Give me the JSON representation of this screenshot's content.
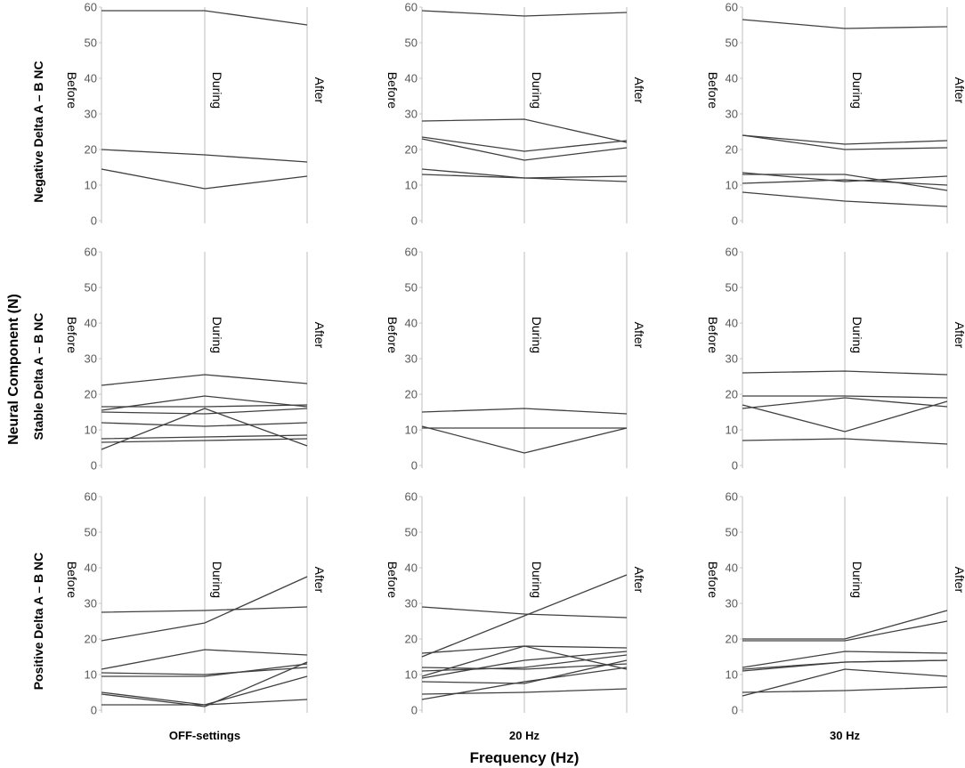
{
  "chart_data": {
    "type": "parallel-coordinates",
    "ylabel": "Neural Component (N)",
    "xlabel": "Frequency (Hz)",
    "ylim": [
      0,
      60
    ],
    "yticks": [
      0,
      10,
      20,
      30,
      40,
      50,
      60
    ],
    "timepoints": [
      "Before",
      "During",
      "After"
    ],
    "columns": [
      "OFF-settings",
      "20 Hz",
      "30 Hz"
    ],
    "rows": [
      "Negative Delta A – B NC",
      "Stable Delta A – B NC",
      "Positive Delta A – B NC"
    ],
    "panels": [
      [
        [
          [
            59,
            59,
            55
          ],
          [
            20,
            18.5,
            16.5
          ],
          [
            14.5,
            9,
            12.5
          ]
        ],
        [
          [
            59,
            57.5,
            58.5
          ],
          [
            28,
            28.5,
            22
          ],
          [
            23.5,
            19.5,
            22.5
          ],
          [
            23,
            17,
            20.5
          ],
          [
            14.5,
            12,
            12.5
          ],
          [
            13,
            12,
            11
          ]
        ],
        [
          [
            56.5,
            54,
            54.5
          ],
          [
            24,
            21.5,
            22.5
          ],
          [
            24,
            20,
            20.5
          ],
          [
            13.5,
            11,
            12.5
          ],
          [
            13,
            13,
            8.5
          ],
          [
            10.5,
            11.5,
            10
          ],
          [
            8,
            5.5,
            4
          ]
        ]
      ],
      [
        [
          [
            22.5,
            25.5,
            23
          ],
          [
            16.5,
            16.5,
            17
          ],
          [
            15.5,
            19.5,
            16.5
          ],
          [
            15,
            14.5,
            16
          ],
          [
            12,
            11,
            12
          ],
          [
            7.5,
            8,
            8.5
          ],
          [
            6.5,
            7,
            7.5
          ],
          [
            4.5,
            16,
            5.5
          ]
        ],
        [
          [
            15,
            16,
            14.5
          ],
          [
            11,
            3.5,
            10.5
          ],
          [
            10.5,
            10.5,
            10.5
          ]
        ],
        [
          [
            26,
            26.5,
            25.5
          ],
          [
            19.5,
            19.5,
            19
          ],
          [
            17,
            9.5,
            18
          ],
          [
            16,
            19,
            16.5
          ],
          [
            7,
            7.5,
            6
          ]
        ]
      ],
      [
        [
          [
            27.5,
            28,
            29
          ],
          [
            19.5,
            24.5,
            37.5
          ],
          [
            11.5,
            17,
            15.5
          ],
          [
            10.5,
            10,
            12
          ],
          [
            9.5,
            9.5,
            13
          ],
          [
            5,
            1.5,
            9.5
          ],
          [
            4.5,
            1,
            13.5
          ],
          [
            1.5,
            1.5,
            3
          ]
        ],
        [
          [
            29,
            27,
            26
          ],
          [
            16,
            18,
            17.5
          ],
          [
            15,
            26.5,
            38
          ],
          [
            12,
            11.5,
            13
          ],
          [
            11,
            12,
            15.5
          ],
          [
            9.5,
            18,
            11.5
          ],
          [
            9,
            14,
            16.5
          ],
          [
            8,
            7.5,
            14
          ],
          [
            4.5,
            5,
            6
          ],
          [
            3,
            8,
            12
          ]
        ],
        [
          [
            20,
            20,
            28
          ],
          [
            19.5,
            19.5,
            25
          ],
          [
            12,
            16.5,
            16
          ],
          [
            11,
            13.5,
            14
          ],
          [
            11.5,
            13.5,
            14
          ],
          [
            4,
            11.5,
            9.5
          ],
          [
            5,
            5.5,
            6.5
          ]
        ]
      ]
    ]
  }
}
